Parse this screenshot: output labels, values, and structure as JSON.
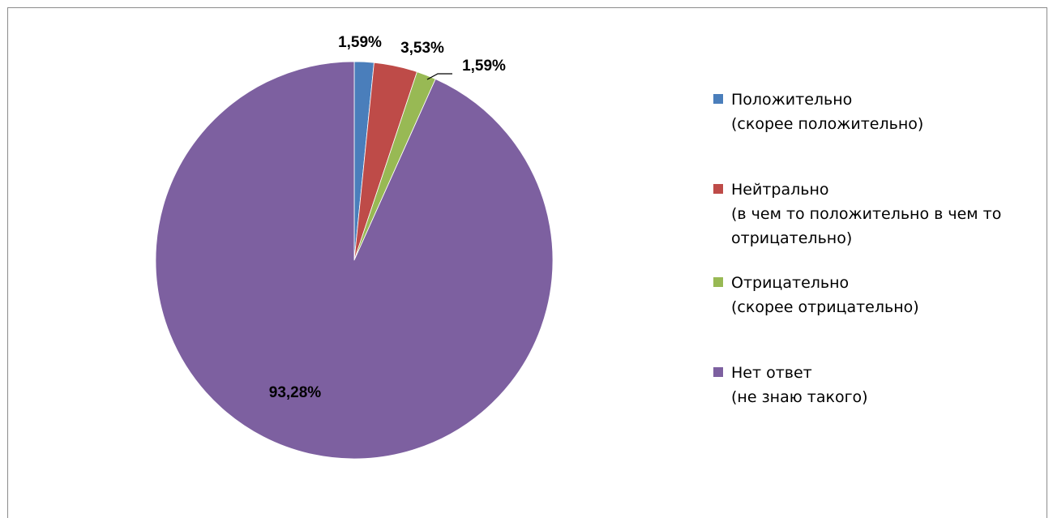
{
  "chart_data": {
    "type": "pie",
    "title": "",
    "start_angle": 0,
    "direction": "clockwise",
    "legend_position": "right",
    "slices": [
      {
        "name_lines": [
          "Положительно",
          "(скорее положительно)"
        ],
        "value": 1.59,
        "label": "1,59%",
        "color": "#4a7ebb"
      },
      {
        "name_lines": [
          "Нейтрально",
          "(в чем то положительно в чем то",
          "отрицательно)"
        ],
        "value": 3.53,
        "label": "3,53%",
        "color": "#be4b48"
      },
      {
        "name_lines": [
          "Отрицательно",
          "(скорее отрицательно)"
        ],
        "value": 1.59,
        "label": "1,59%",
        "color": "#98b954"
      },
      {
        "name_lines": [
          "Нет ответ",
          "(не знаю такого)"
        ],
        "value": 93.28,
        "label": "93,28%",
        "color": "#7d60a0"
      }
    ]
  }
}
